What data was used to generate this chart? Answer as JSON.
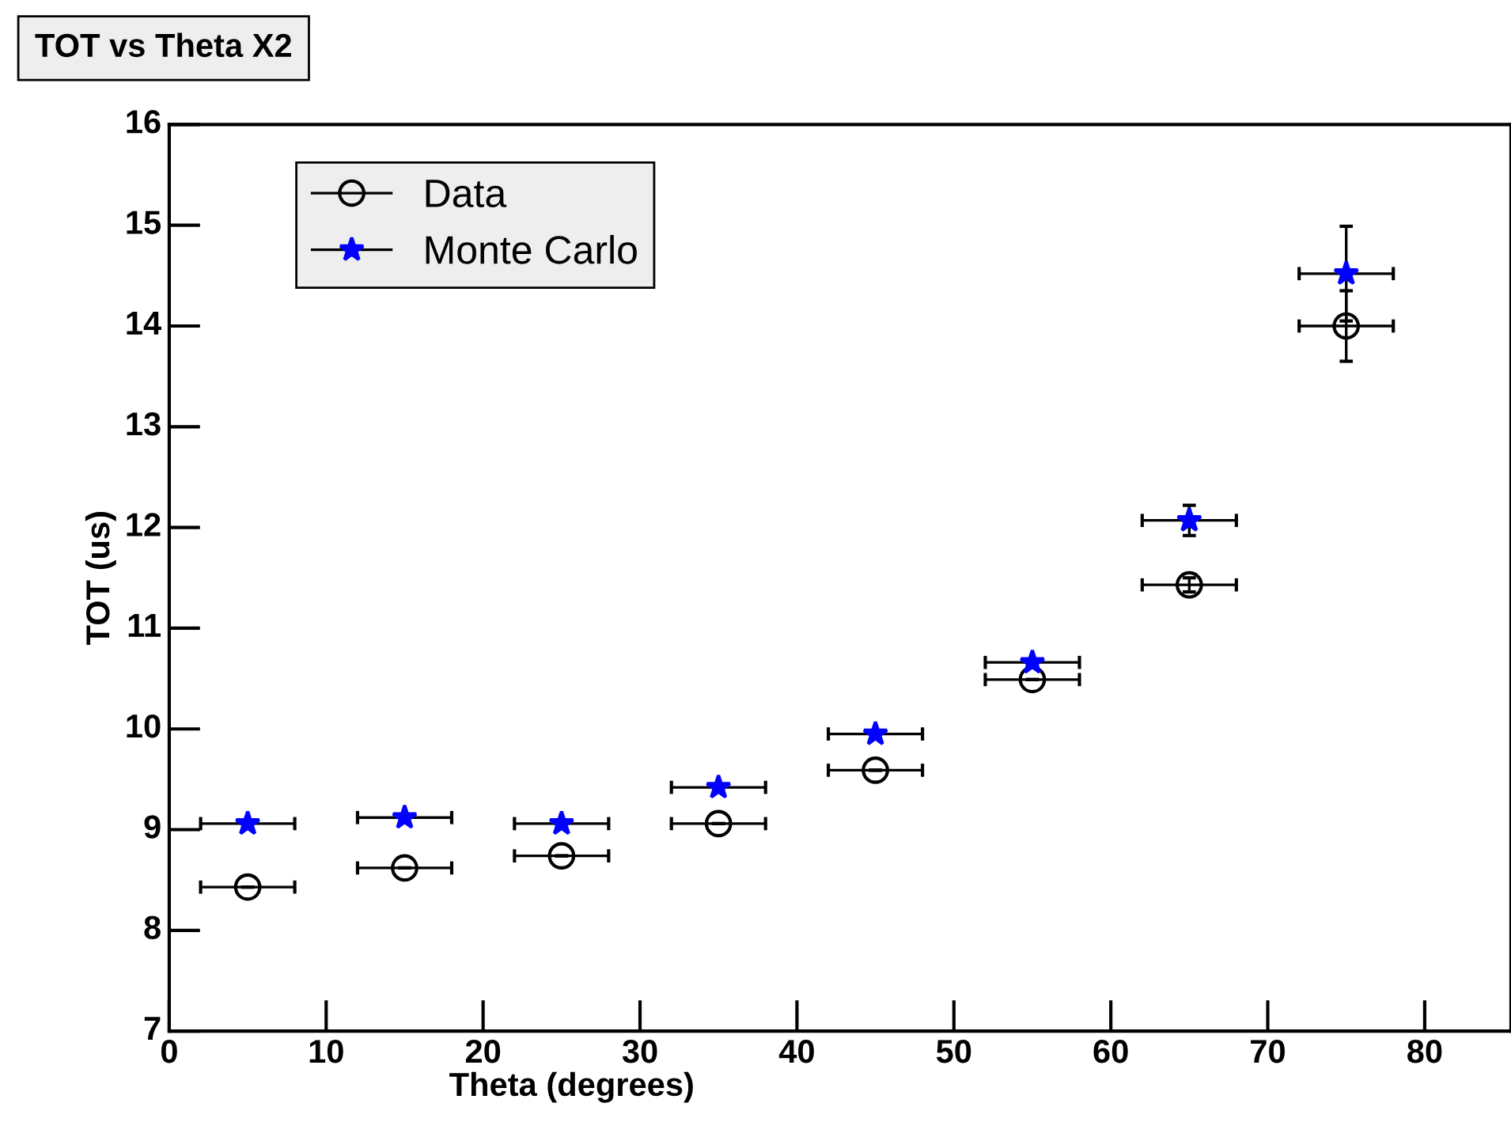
{
  "chart_data": {
    "type": "scatter",
    "title": "TOT vs Theta X2",
    "xlabel": "Theta (degrees)",
    "ylabel": "TOT (us)",
    "x": [
      5,
      15,
      25,
      35,
      45,
      55,
      65,
      75
    ],
    "series": [
      {
        "name": "Data",
        "color": "#000000",
        "marker": "circle",
        "values": [
          8.43,
          8.62,
          8.74,
          9.06,
          9.59,
          10.49,
          11.43,
          14.0
        ],
        "errors": [
          null,
          null,
          null,
          null,
          null,
          null,
          0.07,
          0.35
        ],
        "xerrors": [
          3,
          3,
          3,
          3,
          3,
          3,
          3,
          3
        ]
      },
      {
        "name": "Monte Carlo",
        "color": "#0000ff",
        "marker": "star",
        "values": [
          9.06,
          9.12,
          9.06,
          9.42,
          9.95,
          10.66,
          12.07,
          14.52
        ],
        "errors": [
          null,
          null,
          null,
          null,
          null,
          null,
          0.15,
          0.47
        ],
        "xerrors": [
          3,
          3,
          3,
          3,
          3,
          3,
          3,
          3
        ]
      }
    ],
    "xlim": [
      0,
      85.5
    ],
    "xticks": [
      0,
      10,
      20,
      30,
      40,
      50,
      60,
      70,
      80
    ],
    "ylim": [
      7,
      16
    ],
    "yticks": [
      7,
      8,
      9,
      10,
      11,
      12,
      13,
      14,
      15,
      16
    ],
    "grid": false,
    "legend": "top left"
  }
}
